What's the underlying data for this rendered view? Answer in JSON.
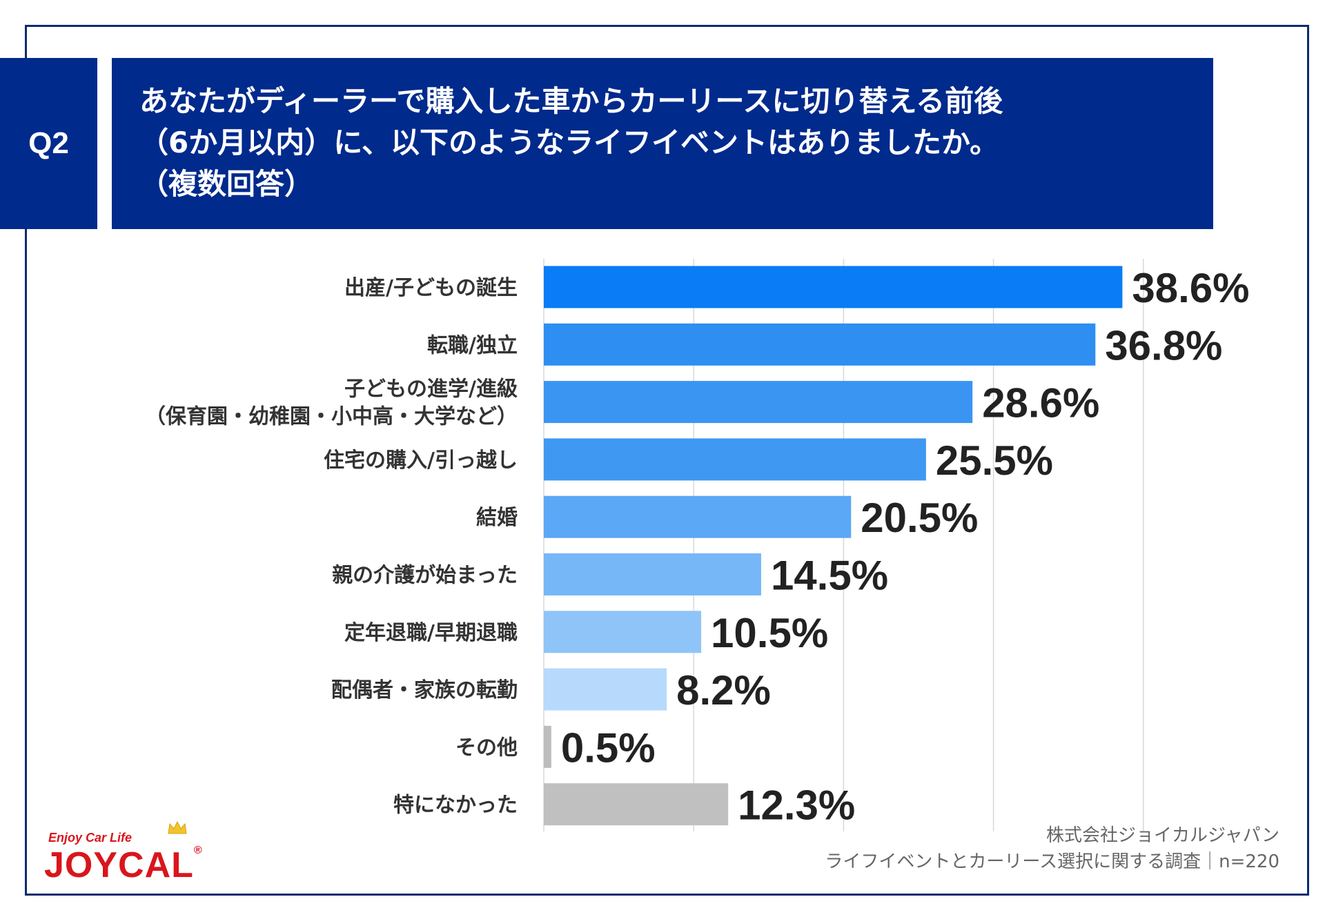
{
  "question": {
    "badge": "Q2",
    "title_lines": [
      "あなたがディーラーで購入した車からカーリースに切り替える前後",
      "（6か月以内）に、以下のようなライフイベントはありましたか。",
      "（複数回答）"
    ]
  },
  "chart_data": {
    "type": "bar",
    "orientation": "horizontal",
    "categories": [
      [
        "出産/子どもの誕生"
      ],
      [
        "転職/独立"
      ],
      [
        "子どもの進学/進級",
        "（保育園・幼稚園・小中高・大学など）"
      ],
      [
        "住宅の購入/引っ越し"
      ],
      [
        "結婚"
      ],
      [
        "親の介護が始まった"
      ],
      [
        "定年退職/早期退職"
      ],
      [
        "配偶者・家族の転勤"
      ],
      [
        "その他"
      ],
      [
        "特になかった"
      ]
    ],
    "values": [
      38.6,
      36.8,
      28.6,
      25.5,
      20.5,
      14.5,
      10.5,
      8.2,
      0.5,
      12.3
    ],
    "value_labels": [
      "38.6%",
      "36.8%",
      "28.6%",
      "25.5%",
      "20.5%",
      "14.5%",
      "10.5%",
      "8.2%",
      "0.5%",
      "12.3%"
    ],
    "colors": [
      "#0a7cf5",
      "#2e8ef2",
      "#3a95f2",
      "#3f98f2",
      "#5aa8f6",
      "#76b7f7",
      "#8fc4f8",
      "#b7d9fb",
      "#bdbdbd",
      "#c0c0c0"
    ],
    "xlim": [
      0,
      50
    ],
    "gridlines": [
      0,
      10,
      20,
      30,
      40
    ],
    "grid": true,
    "legend": "none"
  },
  "source": {
    "line1": "株式会社ジョイカルジャパン",
    "line2": "ライフイベントとカーリース選択に関する調査｜n=220"
  },
  "logo": {
    "tagline": "Enjoy Car Life",
    "wordmark": "JOYCAL",
    "registered": "®",
    "color": "#d9161c"
  }
}
